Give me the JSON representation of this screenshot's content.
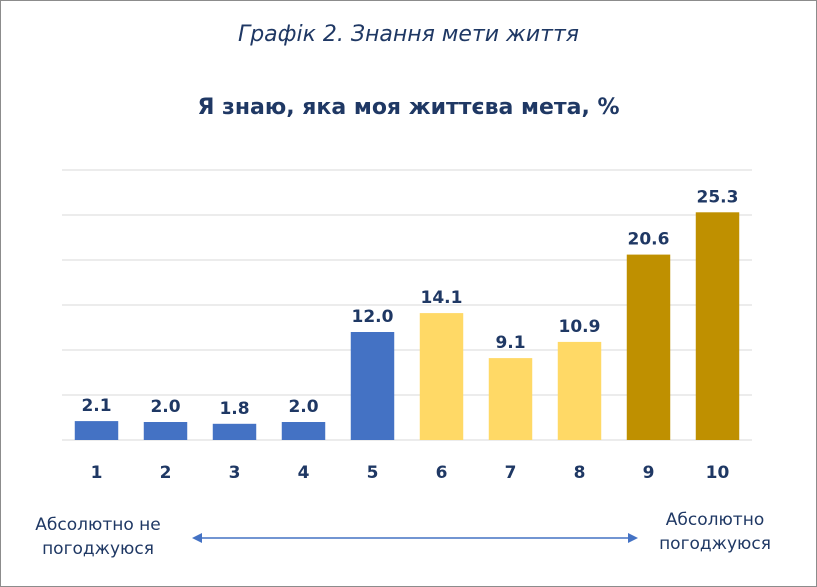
{
  "caption": "Графік 2. Знання мети життя",
  "chart_data": {
    "type": "bar",
    "title": "Я знаю, яка моя життєва мета, %",
    "categories": [
      "1",
      "2",
      "3",
      "4",
      "5",
      "6",
      "7",
      "8",
      "9",
      "10"
    ],
    "values": [
      2.1,
      2.0,
      1.8,
      2.0,
      12.0,
      14.1,
      9.1,
      10.9,
      20.6,
      25.3
    ],
    "value_labels": [
      "2.1",
      "2.0",
      "1.8",
      "2.0",
      "12.0",
      "14.1",
      "9.1",
      "10.9",
      "20.6",
      "25.3"
    ],
    "bar_colors": [
      "#4472c4",
      "#4472c4",
      "#4472c4",
      "#4472c4",
      "#4472c4",
      "#ffd966",
      "#ffd966",
      "#ffd966",
      "#bf9000",
      "#bf9000"
    ],
    "ylim": [
      0,
      30
    ],
    "grid": true,
    "xlabel": "",
    "ylabel": ""
  },
  "axis_notes": {
    "left": "Абсолютно не погоджуюся",
    "right": "Абсолютно погоджуюся"
  },
  "colors": {
    "text": "#1f3864",
    "grid": "#d9d9d9",
    "arrow": "#4472c4"
  }
}
